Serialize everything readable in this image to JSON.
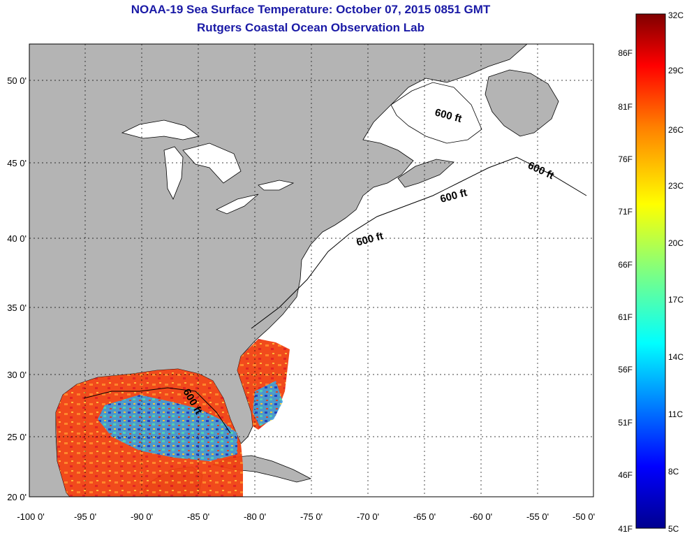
{
  "header": {
    "title": "NOAA-19 Sea Surface Temperature:  October 07, 2015 0851 GMT",
    "subtitle": "Rutgers Coastal Ocean Observation Lab"
  },
  "axes": {
    "lat_labels": [
      "50 0'",
      "45 0'",
      "40 0'",
      "35 0'",
      "30 0'",
      "25 0'",
      "20 0'"
    ],
    "lon_labels": [
      "-100 0'",
      "-95 0'",
      "-90 0'",
      "-85 0'",
      "-80 0'",
      "-75 0'",
      "-70 0'",
      "-65 0'",
      "-60 0'",
      "-55 0'",
      "-50 0'"
    ]
  },
  "contour_label": "600 ft",
  "colorbar": {
    "celsius_labels": [
      "32C",
      "29C",
      "26C",
      "23C",
      "20C",
      "17C",
      "14C",
      "11C",
      "8C",
      "5C"
    ],
    "fahrenheit_labels": [
      "86F",
      "81F",
      "76F",
      "71F",
      "66F",
      "61F",
      "56F",
      "51F",
      "46F",
      "41F"
    ],
    "colors": [
      "#7f0000",
      "#ff0000",
      "#ff8000",
      "#ffff00",
      "#80ff80",
      "#00ffff",
      "#0080ff",
      "#0000ff",
      "#00008f"
    ]
  },
  "colors": {
    "land": "#b4b4b4",
    "ocean": "#ffffff",
    "title": "#1a1aa6"
  }
}
